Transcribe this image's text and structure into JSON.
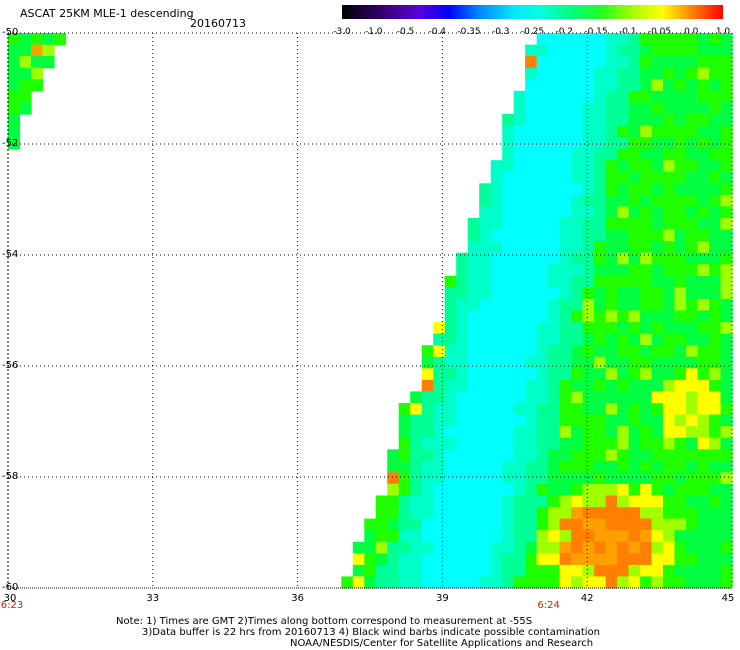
{
  "header": {
    "title": "ASCAT 25KM MLE-1 descending",
    "date": "20160713"
  },
  "colorbar": {
    "labels": [
      "-3.0",
      "-1.0",
      "-0.5",
      "-0.4",
      "-0.35",
      "-0.3",
      "-0.25",
      "-0.2",
      "-0.15",
      "-0.1",
      "-0.05",
      "0.0",
      "1.0"
    ],
    "colors": [
      "#000000",
      "#3a0080",
      "#5a00d8",
      "#0000ff",
      "#0088ff",
      "#00d8ff",
      "#00ffe0",
      "#00ff80",
      "#20ff20",
      "#a0ff00",
      "#ffff00",
      "#ff8000",
      "#ff0000"
    ]
  },
  "axes": {
    "y_labels": [
      "-50",
      "-52",
      "-54",
      "-56",
      "-58",
      "-60"
    ],
    "x_labels": [
      "30",
      "33",
      "36",
      "39",
      "42",
      "45"
    ],
    "time_labels": [
      {
        "text": "6:23",
        "lon": 30
      },
      {
        "text": "6:24",
        "lon": 41.2
      }
    ]
  },
  "footer": {
    "note1": "Note: 1) Times are GMT 2)Times along bottom correspond to measurement at -55S",
    "note2": "3)Data buffer is 22 hrs from 20160713 4) Black wind barbs indicate possible contamination",
    "note3": "NOAA/NESDIS/Center for Satellite Applications and Research"
  },
  "palette": {
    "cyan": "#00ffff",
    "aqua": "#00ffc8",
    "green_cyan": "#00ff96",
    "green": "#00ff40",
    "bright_green": "#20ff00",
    "yellow_green": "#a0ff00",
    "yellow": "#ffff00",
    "orange": "#ffa000",
    "dark_orange": "#ff8000"
  }
}
